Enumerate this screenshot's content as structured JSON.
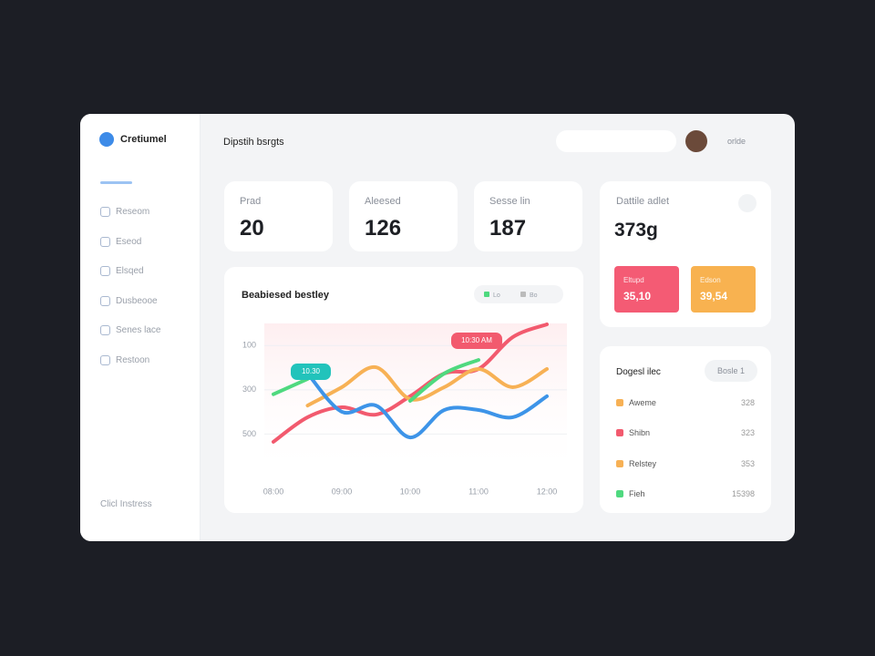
{
  "header": {
    "title": "Dipstih bsrgts",
    "user": "orlde"
  },
  "sidebar": {
    "brand": "Cretiumel",
    "items": [
      "Reseom",
      "Eseod",
      "Elsqed",
      "Dusbeooe",
      "Senes lace",
      "Restoon"
    ],
    "footer": "Clicl Instress"
  },
  "stats": [
    {
      "label": "Prad",
      "value": "20"
    },
    {
      "label": "Aleesed",
      "value": "126"
    },
    {
      "label": "Sesse lin",
      "value": "187"
    }
  ],
  "summary": {
    "label": "Dattile adlet",
    "value": "373g",
    "tiles": [
      {
        "label": "Eltupd",
        "value": "35,10"
      },
      {
        "label": "Edson",
        "value": "39,54"
      }
    ]
  },
  "list": {
    "title": "Dogesl ilec",
    "button": "Bosle 1",
    "rows": [
      {
        "name": "Aweme",
        "value": "328"
      },
      {
        "name": "Shibn",
        "value": "323"
      },
      {
        "name": "Relstey",
        "value": "353"
      },
      {
        "name": "Fieh",
        "value": "15398"
      }
    ]
  },
  "chart_data": {
    "type": "line",
    "title": "Beabiesed bestley",
    "controls": [
      "Lo",
      "Bo"
    ],
    "annotations": [
      "10.30",
      "10:30 AM"
    ],
    "categories": [
      "08:00",
      null,
      "09:00",
      null,
      "10:00",
      null,
      "11:00",
      null,
      "12:00"
    ],
    "ylim": [
      0,
      700
    ],
    "yticks": [
      100,
      300,
      500
    ],
    "inverted": true,
    "grid": true,
    "series": [
      {
        "color": "#f25a6e",
        "values": [
          535,
          424,
          379,
          412,
          329,
          226,
          206,
          62,
          4
        ]
      },
      {
        "color": "#f7b155",
        "values": [
          null,
          371,
          288,
          198,
          342,
          288,
          206,
          288,
          206
        ]
      },
      {
        "color": "#4fd97f",
        "values": [
          320,
          251,
          null,
          null,
          350,
          226,
          165,
          null,
          null
        ]
      },
      {
        "color": "#3d94e8",
        "values": [
          null,
          226,
          399,
          371,
          515,
          391,
          391,
          424,
          329
        ]
      }
    ]
  }
}
